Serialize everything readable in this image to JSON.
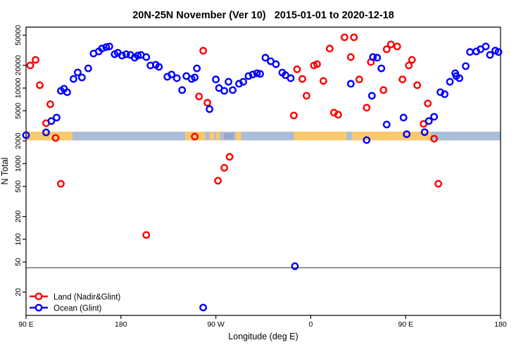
{
  "colors": {
    "land_series": "#ff0000",
    "ocean_series": "#0000ff",
    "map_ocean": "#aabed9",
    "map_land": "#f8ca6c",
    "map_island": "#95a7c9",
    "threshold_line": "#4d4d4d",
    "axis": "#000000"
  },
  "legend": {
    "items": [
      {
        "label": "Land (Nadir&Glint)"
      },
      {
        "label": "Ocean (Glint)"
      }
    ]
  },
  "chart_data": {
    "type": "scatter",
    "title": "20N-25N November (Ver 10)   2015-01-01 to 2020-12-18",
    "xlabel": "Longitude (deg E)",
    "ylabel": "N Total",
    "x_axis": {
      "note": "axis starts at 90E and wraps eastward through 450 degrees of longitude",
      "span_deg": 450,
      "ticks": [
        {
          "offset_deg": 0,
          "label": "90 E"
        },
        {
          "offset_deg": 90,
          "label": "180"
        },
        {
          "offset_deg": 180,
          "label": "90 W"
        },
        {
          "offset_deg": 270,
          "label": "0"
        },
        {
          "offset_deg": 360,
          "label": "90 E"
        },
        {
          "offset_deg": 450,
          "label": "180"
        }
      ]
    },
    "y_axis": {
      "scale": "log",
      "ticks": [
        50000,
        20000,
        10000,
        5000,
        2000,
        1000,
        500,
        200,
        100,
        50,
        20
      ]
    },
    "threshold_line_n": 42,
    "map_strip": {
      "n_top": 2650,
      "n_bottom": 2030,
      "land_spans_deg": [
        [
          0,
          44
        ],
        [
          151,
          170
        ],
        [
          174,
          178
        ],
        [
          180,
          184
        ],
        [
          199,
          204
        ],
        [
          254,
          304
        ],
        [
          309,
          384
        ]
      ],
      "island_spans_deg": [
        [
          188,
          197
        ]
      ]
    },
    "series": [
      {
        "name": "Land (Nadir&Glint)",
        "color_key": "land_series",
        "points": [
          [
            4,
            19900
          ],
          [
            9,
            23600
          ],
          [
            13,
            10900
          ],
          [
            19,
            3430
          ],
          [
            23,
            6110
          ],
          [
            28,
            2190
          ],
          [
            33,
            542
          ],
          [
            114,
            114
          ],
          [
            160,
            2280
          ],
          [
            164,
            7740
          ],
          [
            168,
            31200
          ],
          [
            172,
            6390
          ],
          [
            182,
            595
          ],
          [
            188,
            880
          ],
          [
            193,
            1230
          ],
          [
            254,
            4340
          ],
          [
            257,
            17700
          ],
          [
            262,
            13200
          ],
          [
            266,
            7910
          ],
          [
            273,
            19900
          ],
          [
            276,
            20700
          ],
          [
            282,
            12400
          ],
          [
            288,
            33300
          ],
          [
            292,
            4730
          ],
          [
            296,
            4440
          ],
          [
            302,
            46900
          ],
          [
            308,
            25700
          ],
          [
            311,
            46900
          ],
          [
            316,
            13000
          ],
          [
            323,
            5500
          ],
          [
            327,
            22100
          ],
          [
            339,
            9400
          ],
          [
            342,
            32600
          ],
          [
            346,
            37800
          ],
          [
            352,
            35500
          ],
          [
            357,
            13000
          ],
          [
            363,
            19900
          ],
          [
            366,
            23600
          ],
          [
            371,
            10900
          ],
          [
            377,
            3360
          ],
          [
            381,
            6250
          ],
          [
            387,
            2140
          ],
          [
            391,
            542
          ]
        ]
      },
      {
        "name": "Ocean (Glint)",
        "color_key": "ocean_series",
        "points": [
          [
            0,
            2380
          ],
          [
            19,
            2590
          ],
          [
            24,
            3660
          ],
          [
            29,
            4070
          ],
          [
            33,
            9180
          ],
          [
            36,
            9800
          ],
          [
            39,
            8810
          ],
          [
            45,
            13200
          ],
          [
            49,
            16100
          ],
          [
            53,
            13800
          ],
          [
            59,
            18200
          ],
          [
            64,
            28600
          ],
          [
            69,
            30500
          ],
          [
            72,
            33300
          ],
          [
            76,
            34800
          ],
          [
            79,
            35500
          ],
          [
            84,
            28000
          ],
          [
            87,
            29300
          ],
          [
            91,
            26900
          ],
          [
            95,
            28000
          ],
          [
            99,
            27400
          ],
          [
            103,
            25200
          ],
          [
            106,
            26900
          ],
          [
            109,
            27400
          ],
          [
            114,
            25700
          ],
          [
            118,
            19900
          ],
          [
            123,
            20300
          ],
          [
            126,
            19100
          ],
          [
            134,
            14100
          ],
          [
            138,
            15100
          ],
          [
            143,
            13500
          ],
          [
            148,
            9400
          ],
          [
            152,
            14400
          ],
          [
            157,
            13200
          ],
          [
            160,
            13800
          ],
          [
            162,
            18200
          ],
          [
            174,
            5260
          ],
          [
            180,
            13000
          ],
          [
            183,
            10000
          ],
          [
            188,
            9180
          ],
          [
            192,
            12100
          ],
          [
            196,
            9400
          ],
          [
            202,
            11400
          ],
          [
            206,
            12100
          ],
          [
            211,
            14400
          ],
          [
            215,
            15100
          ],
          [
            219,
            15700
          ],
          [
            222,
            15400
          ],
          [
            227,
            25200
          ],
          [
            232,
            22600
          ],
          [
            237,
            20700
          ],
          [
            243,
            16000
          ],
          [
            246,
            14800
          ],
          [
            251,
            13500
          ],
          [
            308,
            11400
          ],
          [
            323,
            2050
          ],
          [
            328,
            7910
          ],
          [
            329,
            25700
          ],
          [
            333,
            25200
          ],
          [
            337,
            18200
          ],
          [
            342,
            3290
          ],
          [
            358,
            4070
          ],
          [
            361,
            2450
          ],
          [
            378,
            2610
          ],
          [
            382,
            3660
          ],
          [
            387,
            4170
          ],
          [
            393,
            8810
          ],
          [
            397,
            8300
          ],
          [
            402,
            12100
          ],
          [
            407,
            15700
          ],
          [
            408,
            14400
          ],
          [
            411,
            13500
          ],
          [
            417,
            19500
          ],
          [
            421,
            30000
          ],
          [
            427,
            30500
          ],
          [
            431,
            32600
          ],
          [
            436,
            35500
          ],
          [
            440,
            27400
          ],
          [
            445,
            31300
          ],
          [
            448,
            30000
          ],
          [
            255,
            44
          ],
          [
            168,
            12.5
          ]
        ]
      }
    ]
  }
}
